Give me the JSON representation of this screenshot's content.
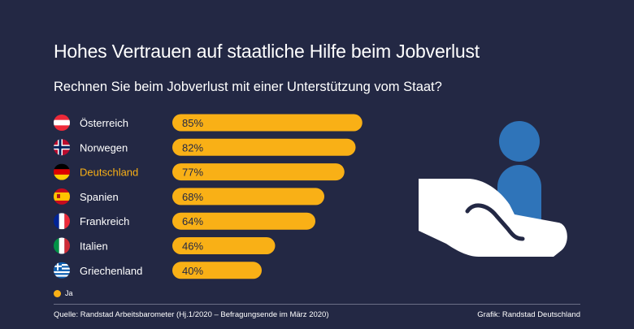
{
  "title": "Hohes Vertrauen auf staatliche Hilfe beim Jobverlust",
  "subtitle": "Rechnen Sie beim Jobverlust mit einer Unterstützung vom Staat?",
  "colors": {
    "background": "#232844",
    "bar": "#f9b016",
    "highlight_text": "#f9b016",
    "person": "#2f74b9",
    "hand": "#ffffff"
  },
  "chart_data": {
    "type": "bar",
    "orientation": "horizontal",
    "categories": [
      "Österreich",
      "Norwegen",
      "Deutschland",
      "Spanien",
      "Frankreich",
      "Italien",
      "Griechenland"
    ],
    "flags": [
      "austria",
      "norway",
      "germany",
      "spain",
      "france",
      "italy",
      "greece"
    ],
    "highlight": "Deutschland",
    "series": [
      {
        "name": "Ja",
        "values": [
          85,
          82,
          77,
          68,
          64,
          46,
          40
        ]
      }
    ],
    "data_labels": [
      "85%",
      "82%",
      "77%",
      "68%",
      "64%",
      "46%",
      "40%"
    ],
    "xlim": [
      0,
      100
    ],
    "grid": false,
    "legend_position": "bottom-left"
  },
  "legend": {
    "label": "Ja"
  },
  "footer": {
    "source": "Quelle: Randstad Arbeitsbarometer (Hj.1/2020 – Befragungsende im März 2020)",
    "credit": "Grafik: Randstad Deutschland"
  },
  "illustration": {
    "icon": "hand-holding-person-icon"
  }
}
